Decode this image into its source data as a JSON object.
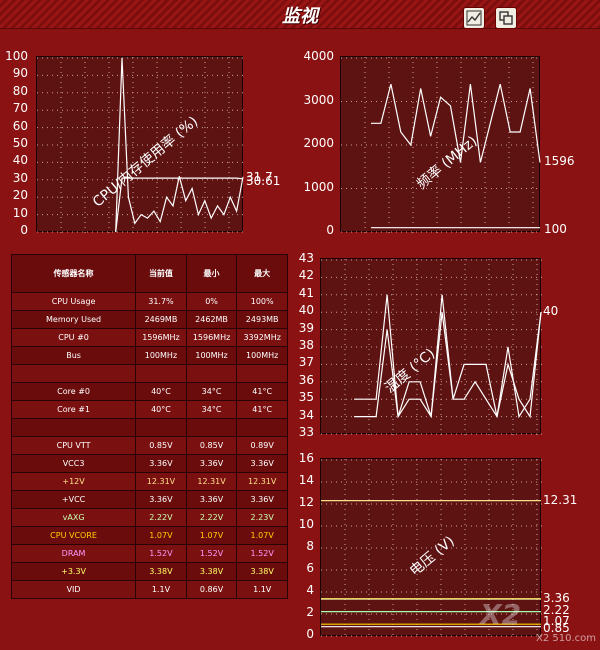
{
  "window": {
    "title": "监视"
  },
  "toolbar": {
    "chart_button": "chart-view",
    "window_button": "restore-view"
  },
  "charts": {
    "cpu": {
      "label": "CPU/内存使用率 (%)",
      "yticks": [
        "100",
        "90",
        "80",
        "70",
        "60",
        "50",
        "40",
        "30",
        "20",
        "10",
        "0"
      ],
      "right_values": [
        "31.7",
        "30.61"
      ],
      "ylim": [
        0,
        100
      ],
      "series": [
        {
          "name": "cpu",
          "values": [
            0,
            100,
            20,
            5,
            10,
            8,
            12,
            6,
            20,
            15,
            32,
            18,
            25,
            10,
            18,
            8,
            15,
            10,
            20,
            12,
            31.7
          ]
        },
        {
          "name": "mem",
          "values": [
            0,
            31,
            31,
            31,
            31,
            31,
            31,
            31,
            31,
            31,
            31,
            31,
            31,
            31,
            31,
            31,
            31,
            31,
            31,
            31,
            30.6
          ]
        }
      ]
    },
    "freq": {
      "label": "频率 (MHz)",
      "yticks": [
        "4000",
        "3000",
        "2000",
        "1000",
        "0"
      ],
      "right_values": [
        "1596",
        "100"
      ],
      "ylim": [
        0,
        4000
      ],
      "series": [
        {
          "name": "cpu0",
          "values": [
            2500,
            2500,
            3400,
            2300,
            2000,
            3300,
            2200,
            3100,
            2900,
            1600,
            3400,
            1600,
            2500,
            3400,
            2300,
            2300,
            3300,
            1596
          ]
        },
        {
          "name": "bus",
          "values": [
            100,
            100,
            100,
            100,
            100,
            100,
            100,
            100,
            100,
            100,
            100,
            100,
            100,
            100,
            100,
            100,
            100,
            100
          ]
        }
      ]
    },
    "temp": {
      "label": "温度 (°C)",
      "yticks": [
        "43",
        "42",
        "41",
        "40",
        "39",
        "38",
        "37",
        "36",
        "35",
        "34",
        "33"
      ],
      "right_values": [
        "40"
      ],
      "ylim": [
        33,
        43
      ],
      "series": [
        {
          "name": "core0",
          "values": [
            35,
            35,
            35,
            41,
            34,
            36,
            36,
            34,
            41,
            35,
            37,
            37,
            37,
            34,
            38,
            34,
            35,
            40
          ]
        },
        {
          "name": "core1",
          "values": [
            34,
            34,
            34,
            39,
            34,
            35,
            35,
            34,
            40,
            35,
            35,
            36,
            35,
            34,
            37,
            35,
            34,
            40
          ]
        }
      ]
    },
    "volt": {
      "label": "电压 (V)",
      "yticks": [
        "16",
        "14",
        "12",
        "10",
        "8",
        "6",
        "4",
        "2",
        "0"
      ],
      "right_values": [
        "12.31",
        "3.36",
        "2.22",
        "1.07",
        "0.85"
      ],
      "ylim": [
        0,
        16
      ],
      "series": [
        {
          "name": "+12V",
          "color": "#ffe08a",
          "values": [
            12.31,
            12.31
          ]
        },
        {
          "name": "VCC3",
          "color": "#ffffff",
          "values": [
            3.36,
            3.36
          ]
        },
        {
          "name": "vAXG",
          "color": "#aaffaa",
          "values": [
            2.22,
            2.22
          ]
        },
        {
          "name": "+3.3V",
          "color": "#ffff66",
          "values": [
            3.38,
            3.38
          ]
        },
        {
          "name": "VCORE",
          "color": "#ffd000",
          "values": [
            1.07,
            1.07
          ]
        },
        {
          "name": "VTT",
          "color": "#ffffff",
          "values": [
            0.85,
            0.85
          ]
        }
      ]
    }
  },
  "table": {
    "headers": [
      "传感器名称",
      "当前值",
      "最小",
      "最大"
    ],
    "rows": [
      {
        "name": "CPU Usage",
        "cur": "31.7%",
        "min": "0%",
        "max": "100%",
        "color": "#ffffff"
      },
      {
        "name": "Memory Used",
        "cur": "2469MB",
        "min": "2462MB",
        "max": "2493MB",
        "color": "#ffffff"
      },
      {
        "name": "CPU #0",
        "cur": "1596MHz",
        "min": "1596MHz",
        "max": "3392MHz",
        "color": "#ffffff"
      },
      {
        "name": "Bus",
        "cur": "100MHz",
        "min": "100MHz",
        "max": "100MHz",
        "color": "#ffffff"
      },
      {
        "name": "",
        "cur": "",
        "min": "",
        "max": "",
        "color": "#ffffff"
      },
      {
        "name": "Core #0",
        "cur": "40°C",
        "min": "34°C",
        "max": "41°C",
        "color": "#ffffff"
      },
      {
        "name": "Core #1",
        "cur": "40°C",
        "min": "34°C",
        "max": "41°C",
        "color": "#ffffff"
      },
      {
        "name": "",
        "cur": "",
        "min": "",
        "max": "",
        "color": "#ffffff"
      },
      {
        "name": "CPU VTT",
        "cur": "0.85V",
        "min": "0.85V",
        "max": "0.89V",
        "color": "#ffffff"
      },
      {
        "name": "VCC3",
        "cur": "3.36V",
        "min": "3.36V",
        "max": "3.36V",
        "color": "#ffffff"
      },
      {
        "name": "+12V",
        "cur": "12.31V",
        "min": "12.31V",
        "max": "12.31V",
        "color": "#ffe08a"
      },
      {
        "name": "+VCC",
        "cur": "3.36V",
        "min": "3.36V",
        "max": "3.36V",
        "color": "#ffffff"
      },
      {
        "name": "vAXG",
        "cur": "2.22V",
        "min": "2.22V",
        "max": "2.23V",
        "color": "#c8ffb0"
      },
      {
        "name": "CPU VCORE",
        "cur": "1.07V",
        "min": "1.07V",
        "max": "1.07V",
        "color": "#ffd000"
      },
      {
        "name": "DRAM",
        "cur": "1.52V",
        "min": "1.52V",
        "max": "1.52V",
        "color": "#ff99ff"
      },
      {
        "name": "+3.3V",
        "cur": "3.38V",
        "min": "3.38V",
        "max": "3.38V",
        "color": "#ffff66"
      },
      {
        "name": "VID",
        "cur": "1.1V",
        "min": "0.86V",
        "max": "1.1V",
        "color": "#ffffff"
      }
    ]
  },
  "watermark": {
    "text": "X2 510.com"
  }
}
